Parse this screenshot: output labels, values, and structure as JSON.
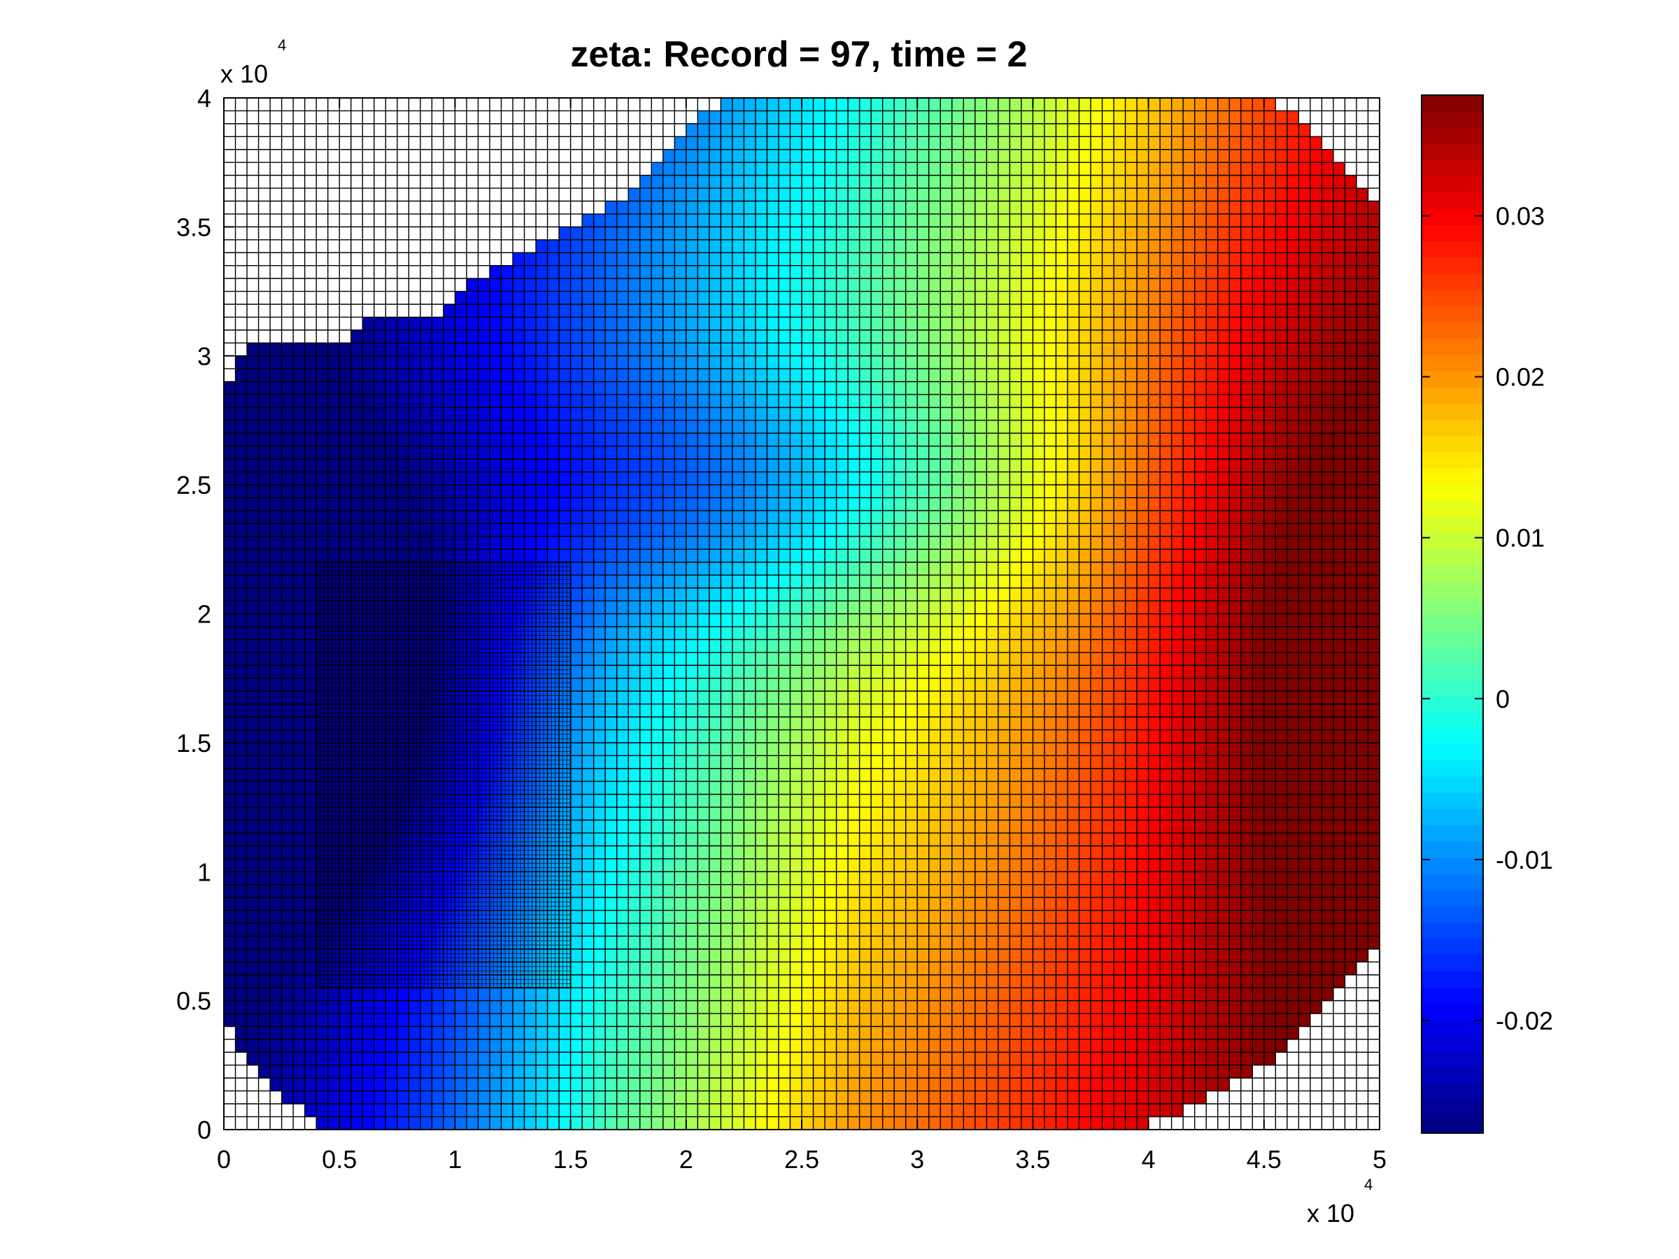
{
  "chart_data": {
    "type": "heatmap",
    "title": "zeta:    Record = 97,    time = 2",
    "xlabel": "",
    "ylabel": "",
    "x_multiplier": {
      "base": "x 10",
      "exponent": "4"
    },
    "y_multiplier": {
      "base": "x 10",
      "exponent": "4"
    },
    "xlim": [
      0,
      50000
    ],
    "ylim": [
      0,
      40000
    ],
    "x_ticks": [
      0,
      5000,
      10000,
      15000,
      20000,
      25000,
      30000,
      35000,
      40000,
      45000,
      50000
    ],
    "x_tick_labels": [
      "0",
      "0.5",
      "1",
      "1.5",
      "2",
      "2.5",
      "3",
      "3.5",
      "4",
      "4.5",
      "5"
    ],
    "y_ticks": [
      0,
      5000,
      10000,
      15000,
      20000,
      25000,
      30000,
      35000,
      40000
    ],
    "y_tick_labels": [
      "0",
      "0.5",
      "1",
      "1.5",
      "2",
      "2.5",
      "3",
      "3.5",
      "4"
    ],
    "colorbar": {
      "colormap": "jet",
      "range": [
        -0.027,
        0.0375
      ],
      "ticks": [
        -0.02,
        -0.01,
        0,
        0.01,
        0.02,
        0.03
      ],
      "tick_labels": [
        "-0.02",
        "-0.01",
        "0",
        "0.01",
        "0.02",
        "0.03"
      ]
    },
    "coarse_grid": {
      "x_range": [
        0,
        50000
      ],
      "y_range": [
        0,
        40000
      ],
      "cell_size": 500
    },
    "nested_grid": {
      "x_range": [
        4000,
        15000
      ],
      "y_range": [
        5500,
        22000
      ],
      "cell_size": 166.7
    },
    "field_model": {
      "description_values": {
        "lower_left_region_value": -0.026,
        "upper_left_region_value": -0.025,
        "right_edge_value": 0.036,
        "bottom_center_value": 0.012
      }
    },
    "domain_polygon_data_units": [
      [
        0,
        28500
      ],
      [
        500,
        29500
      ],
      [
        1000,
        30000
      ],
      [
        1500,
        30500
      ],
      [
        5500,
        30500
      ],
      [
        6000,
        31500
      ],
      [
        9500,
        31500
      ],
      [
        10000,
        32000
      ],
      [
        11000,
        33000
      ],
      [
        13000,
        34000
      ],
      [
        15000,
        35000
      ],
      [
        16000,
        35500
      ],
      [
        17000,
        36000
      ],
      [
        18500,
        37000
      ],
      [
        20000,
        38500
      ],
      [
        21000,
        39500
      ],
      [
        22500,
        40000
      ],
      [
        45500,
        40000
      ],
      [
        46000,
        39500
      ],
      [
        47000,
        39000
      ],
      [
        47500,
        38000
      ],
      [
        48500,
        37500
      ],
      [
        49500,
        36500
      ],
      [
        50000,
        36000
      ],
      [
        50000,
        7000
      ],
      [
        49500,
        6500
      ],
      [
        48500,
        5500
      ],
      [
        48000,
        5000
      ],
      [
        47000,
        4000
      ],
      [
        46000,
        3000
      ],
      [
        45000,
        2500
      ],
      [
        44000,
        2000
      ],
      [
        43000,
        1500
      ],
      [
        42000,
        1000
      ],
      [
        41000,
        500
      ],
      [
        39000,
        0
      ],
      [
        4000,
        0
      ],
      [
        4000,
        500
      ],
      [
        3000,
        1000
      ],
      [
        2000,
        1500
      ],
      [
        1500,
        2500
      ],
      [
        500,
        3500
      ],
      [
        0,
        4500
      ]
    ]
  }
}
